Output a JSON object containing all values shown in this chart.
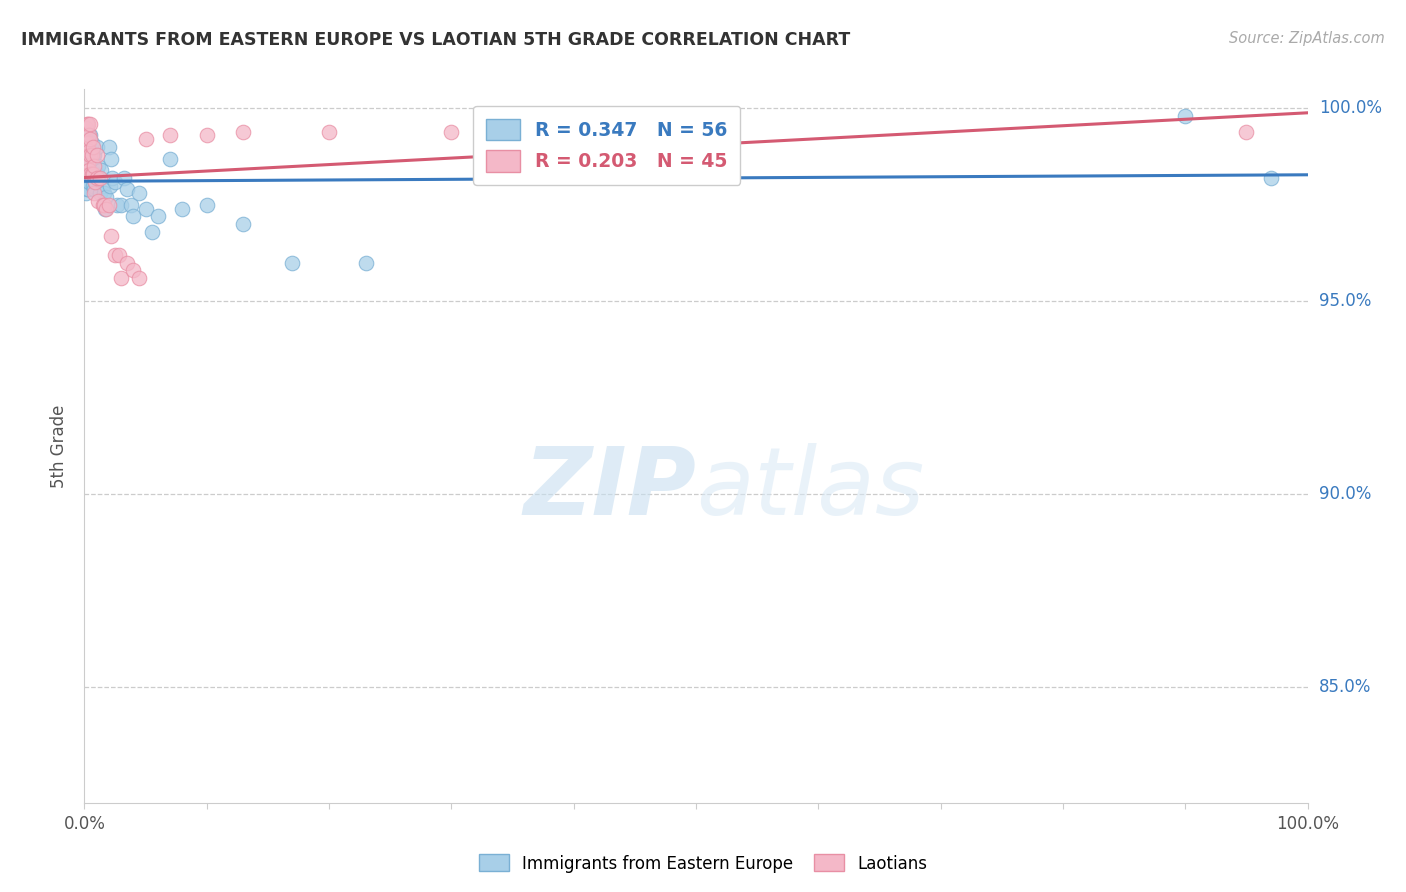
{
  "title": "IMMIGRANTS FROM EASTERN EUROPE VS LAOTIAN 5TH GRADE CORRELATION CHART",
  "source": "Source: ZipAtlas.com",
  "ylabel": "5th Grade",
  "xlim": [
    0.0,
    1.0
  ],
  "ylim": [
    0.82,
    1.005
  ],
  "yticks": [
    0.85,
    0.9,
    0.95,
    1.0
  ],
  "ytick_labels": [
    "85.0%",
    "90.0%",
    "95.0%",
    "100.0%"
  ],
  "blue_R": "R = 0.347",
  "blue_N": "N = 56",
  "pink_R": "R = 0.203",
  "pink_N": "N = 45",
  "blue_color": "#a8cfe8",
  "pink_color": "#f4b8c8",
  "blue_edge_color": "#7ab0d4",
  "pink_edge_color": "#e88fa4",
  "blue_line_color": "#3a7abf",
  "pink_line_color": "#d45a72",
  "legend_label_blue": "Immigrants from Eastern Europe",
  "legend_label_pink": "Laotians",
  "watermark_zip": "ZIP",
  "watermark_atlas": "atlas",
  "blue_scatter_x": [
    0.001,
    0.001,
    0.001,
    0.002,
    0.002,
    0.002,
    0.002,
    0.003,
    0.003,
    0.003,
    0.003,
    0.004,
    0.004,
    0.004,
    0.005,
    0.005,
    0.006,
    0.006,
    0.007,
    0.007,
    0.008,
    0.008,
    0.009,
    0.01,
    0.01,
    0.011,
    0.012,
    0.013,
    0.014,
    0.015,
    0.016,
    0.017,
    0.018,
    0.02,
    0.021,
    0.022,
    0.023,
    0.025,
    0.027,
    0.03,
    0.032,
    0.035,
    0.038,
    0.04,
    0.045,
    0.05,
    0.055,
    0.06,
    0.07,
    0.08,
    0.1,
    0.13,
    0.17,
    0.23,
    0.9,
    0.97
  ],
  "blue_scatter_y": [
    0.986,
    0.982,
    0.978,
    0.993,
    0.988,
    0.984,
    0.979,
    0.993,
    0.988,
    0.984,
    0.979,
    0.991,
    0.986,
    0.981,
    0.993,
    0.988,
    0.991,
    0.982,
    0.988,
    0.98,
    0.988,
    0.979,
    0.981,
    0.99,
    0.983,
    0.985,
    0.982,
    0.978,
    0.984,
    0.98,
    0.978,
    0.974,
    0.977,
    0.99,
    0.98,
    0.987,
    0.982,
    0.981,
    0.975,
    0.975,
    0.982,
    0.979,
    0.975,
    0.972,
    0.978,
    0.974,
    0.968,
    0.972,
    0.987,
    0.974,
    0.975,
    0.97,
    0.96,
    0.96,
    0.998,
    0.982
  ],
  "pink_scatter_x": [
    0.001,
    0.001,
    0.001,
    0.002,
    0.002,
    0.003,
    0.003,
    0.003,
    0.004,
    0.004,
    0.004,
    0.005,
    0.005,
    0.005,
    0.005,
    0.006,
    0.006,
    0.007,
    0.007,
    0.008,
    0.008,
    0.009,
    0.01,
    0.01,
    0.011,
    0.013,
    0.015,
    0.016,
    0.018,
    0.02,
    0.022,
    0.025,
    0.028,
    0.03,
    0.035,
    0.04,
    0.045,
    0.05,
    0.07,
    0.1,
    0.13,
    0.2,
    0.3,
    0.4,
    0.95
  ],
  "pink_scatter_y": [
    0.995,
    0.99,
    0.985,
    0.996,
    0.991,
    0.996,
    0.991,
    0.986,
    0.993,
    0.989,
    0.984,
    0.996,
    0.992,
    0.988,
    0.983,
    0.988,
    0.983,
    0.99,
    0.983,
    0.985,
    0.978,
    0.981,
    0.988,
    0.982,
    0.976,
    0.982,
    0.975,
    0.975,
    0.974,
    0.975,
    0.967,
    0.962,
    0.962,
    0.956,
    0.96,
    0.958,
    0.956,
    0.992,
    0.993,
    0.993,
    0.994,
    0.994,
    0.994,
    0.994,
    0.994
  ]
}
